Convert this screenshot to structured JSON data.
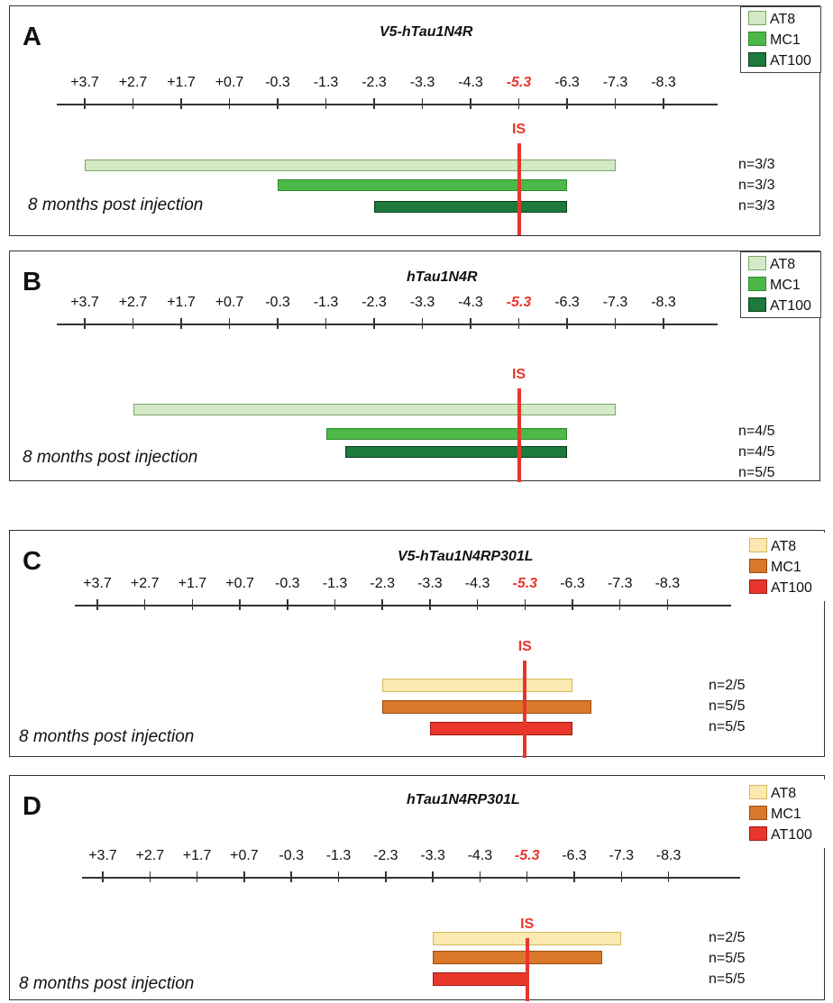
{
  "colors": {
    "highlight": "#e8362b"
  },
  "scale_labels": [
    "+3.7",
    "+2.7",
    "+1.7",
    "+0.7",
    "-0.3",
    "-1.3",
    "-2.3",
    "-3.3",
    "-4.3",
    "-5.3",
    "-6.3",
    "-7.3",
    "-8.3"
  ],
  "injection_site_label": "IS",
  "panels": [
    {
      "letter": "A",
      "title": "V5-hTau1N4R",
      "caption": "8 months post injection",
      "legend": [
        {
          "label": "AT8",
          "color": "#d4e9c6",
          "border": "#7aa866"
        },
        {
          "label": "MC1",
          "color": "#4cb848",
          "border": "#2c8a2a"
        },
        {
          "label": "AT100",
          "color": "#1c7a3a",
          "border": "#0b3d1a"
        }
      ],
      "bars": [
        {
          "name": "AT8",
          "start": "+3.7",
          "end": "-7.3",
          "n": "n=3/3"
        },
        {
          "name": "MC1",
          "start": "-0.3",
          "end": "-6.3",
          "n": "n=3/3"
        },
        {
          "name": "AT100",
          "start": "-2.3",
          "end": "-6.3",
          "n": "n=3/3"
        }
      ]
    },
    {
      "letter": "B",
      "title": "hTau1N4R",
      "caption": "8 months post injection",
      "legend": [
        {
          "label": "AT8",
          "color": "#d4e9c6",
          "border": "#7aa866"
        },
        {
          "label": "MC1",
          "color": "#4cb848",
          "border": "#2c8a2a"
        },
        {
          "label": "AT100",
          "color": "#1c7a3a",
          "border": "#0b3d1a"
        }
      ],
      "bars": [
        {
          "name": "AT8",
          "start": "+2.7",
          "end": "-7.3",
          "n": "n=4/5"
        },
        {
          "name": "MC1",
          "start": "-1.3",
          "end": "-6.3",
          "n": "n=4/5"
        },
        {
          "name": "AT100",
          "start": "-1.7",
          "end": "-6.3",
          "n": "n=5/5"
        }
      ]
    },
    {
      "letter": "C",
      "title": "V5-hTau1N4RP301L",
      "caption": "8 months post injection",
      "legend": [
        {
          "label": "AT8",
          "color": "#fbe9b0",
          "border": "#d8b860"
        },
        {
          "label": "MC1",
          "color": "#d9782a",
          "border": "#9c4e12"
        },
        {
          "label": "AT100",
          "color": "#e8362b",
          "border": "#a11a12"
        }
      ],
      "bars": [
        {
          "name": "AT8",
          "start": "-2.3",
          "end": "-6.3",
          "n": "n=2/5"
        },
        {
          "name": "MC1",
          "start": "-2.3",
          "end": "-6.7",
          "n": "n=5/5"
        },
        {
          "name": "AT100",
          "start": "-3.3",
          "end": "-6.3",
          "n": "n=5/5"
        }
      ]
    },
    {
      "letter": "D",
      "title": "hTau1N4RP301L",
      "caption": "8 months post injection",
      "legend": [
        {
          "label": "AT8",
          "color": "#fbe9b0",
          "border": "#d8b860"
        },
        {
          "label": "MC1",
          "color": "#d9782a",
          "border": "#9c4e12"
        },
        {
          "label": "AT100",
          "color": "#e8362b",
          "border": "#a11a12"
        }
      ],
      "bars": [
        {
          "name": "AT8",
          "start": "-3.3",
          "end": "-7.3",
          "n": "n=2/5"
        },
        {
          "name": "MC1",
          "start": "-3.3",
          "end": "-6.9",
          "n": "n=5/5"
        },
        {
          "name": "AT100",
          "start": "-3.3",
          "end": "-5.3",
          "n": "n=5/5"
        }
      ]
    }
  ]
}
